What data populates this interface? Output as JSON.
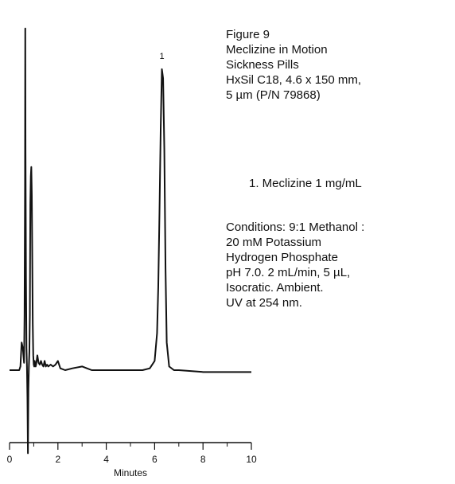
{
  "caption": {
    "lines": [
      "Figure 9",
      "Meclizine in Motion",
      "Sickness Pills",
      "HxSil C18, 4.6 x 150 mm,",
      "5 µm (P/N 79868)"
    ]
  },
  "legend": {
    "entries": [
      "1.  Meclizine  1 mg/mL"
    ]
  },
  "conditions": {
    "lines": [
      "Conditions:   9:1 Methanol :",
      "20 mM Potassium",
      "Hydrogen Phosphate",
      "pH 7.0. 2 mL/min, 5 µL,",
      "Isocratic. Ambient.",
      "UV at 254 nm."
    ]
  },
  "chart_data": {
    "type": "line",
    "title": "",
    "xlabel": "Minutes",
    "ylabel": "",
    "xlim": [
      0,
      10
    ],
    "ylim": [
      -0.5,
      2.0
    ],
    "x_ticks": [
      0,
      2,
      4,
      6,
      8,
      10
    ],
    "minor_x_ticks": [
      1,
      3,
      5,
      7,
      9
    ],
    "grid": false,
    "line_color": "#111111",
    "series": [
      {
        "x": [
          0.0,
          0.4,
          0.45,
          0.5,
          0.55,
          0.6,
          0.62,
          0.64,
          0.65,
          0.66,
          0.68,
          0.7,
          0.72,
          0.74,
          0.76,
          0.78,
          0.8,
          0.82,
          0.84,
          0.86,
          0.88,
          0.9,
          0.92,
          0.94,
          0.96,
          0.98,
          1.0,
          1.02,
          1.04,
          1.06,
          1.08,
          1.1,
          1.15,
          1.2,
          1.25,
          1.3,
          1.35,
          1.4,
          1.45,
          1.5,
          1.55,
          1.6,
          1.7,
          1.8,
          1.9,
          1.95,
          2.0,
          2.05,
          2.1,
          2.3,
          2.6,
          3.0,
          3.2,
          3.4,
          3.8,
          4.2,
          4.6,
          5.0,
          5.5,
          5.8,
          6.0,
          6.1,
          6.15,
          6.2,
          6.25,
          6.3,
          6.35,
          6.4,
          6.45,
          6.5,
          6.6,
          6.8,
          7.0,
          8.0,
          9.0,
          10.0
        ],
        "y": [
          0.0,
          0.0,
          0.02,
          0.15,
          0.12,
          0.04,
          0.3,
          1.0,
          1.85,
          1.2,
          0.5,
          0.12,
          0.02,
          -0.15,
          -0.45,
          -0.1,
          0.02,
          0.1,
          0.3,
          0.9,
          1.05,
          1.1,
          0.95,
          0.6,
          0.25,
          0.08,
          0.03,
          0.02,
          0.05,
          0.03,
          0.02,
          0.03,
          0.08,
          0.04,
          0.03,
          0.05,
          0.03,
          0.02,
          0.05,
          0.02,
          0.03,
          0.02,
          0.03,
          0.02,
          0.03,
          0.04,
          0.05,
          0.03,
          0.01,
          0.0,
          0.01,
          0.02,
          0.01,
          0.0,
          0.0,
          0.0,
          0.0,
          0.0,
          0.0,
          0.01,
          0.05,
          0.2,
          0.45,
          0.85,
          1.3,
          1.63,
          1.58,
          1.2,
          0.55,
          0.15,
          0.02,
          0.0,
          0.0,
          -0.01,
          -0.01,
          -0.01
        ]
      }
    ],
    "peak_labels": [
      {
        "text": "1",
        "x": 6.3,
        "y": 1.63
      }
    ]
  }
}
